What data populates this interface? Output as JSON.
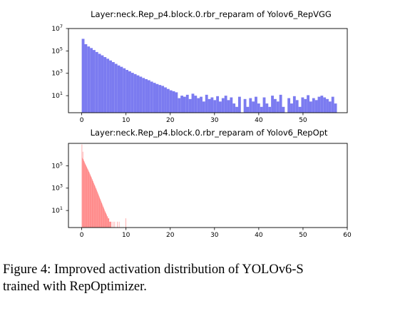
{
  "chart_data": [
    {
      "type": "bar",
      "title": "Layer:neck.Rep_p4.block.0.rbr_reparam of Yolov6_RepVGG",
      "xlabel": "",
      "ylabel": "",
      "y_scale": "log",
      "xlim": [
        -3,
        60
      ],
      "ylim": [
        0.3,
        10000000
      ],
      "x_ticks": [
        0,
        10,
        20,
        30,
        40,
        50
      ],
      "y_ticks": [
        {
          "value": 10,
          "base": "10",
          "exp": "1"
        },
        {
          "value": 1000,
          "base": "10",
          "exp": "3"
        },
        {
          "value": 100000,
          "base": "10",
          "exp": "5"
        },
        {
          "value": 10000000,
          "base": "10",
          "exp": "7"
        }
      ],
      "color": "#7b7bf0",
      "grid": false,
      "bin_width": 0.62,
      "x": [
        0.0,
        0.62,
        1.24,
        1.86,
        2.48,
        3.1,
        3.72,
        4.34,
        4.96,
        5.58,
        6.2,
        6.82,
        7.44,
        8.06,
        8.68,
        9.3,
        9.92,
        10.54,
        11.16,
        11.78,
        12.4,
        13.02,
        13.64,
        14.26,
        14.88,
        15.5,
        16.12,
        16.74,
        17.36,
        17.98,
        18.6,
        19.22,
        19.84,
        20.46,
        21.08,
        21.7,
        22.32,
        22.94,
        23.56,
        24.18,
        24.8,
        25.42,
        26.04,
        26.66,
        27.28,
        27.9,
        28.52,
        29.14,
        29.76,
        30.38,
        31.0,
        31.62,
        32.24,
        32.86,
        33.48,
        34.1,
        34.72,
        35.34,
        35.96,
        36.58,
        37.2,
        37.82,
        38.44,
        39.06,
        39.68,
        40.3,
        40.92,
        41.54,
        42.16,
        42.78,
        43.4,
        44.02,
        44.64,
        45.26,
        45.88,
        46.5,
        47.12,
        47.74,
        48.36,
        48.98,
        49.6,
        50.22,
        50.84,
        51.46,
        52.08,
        52.7,
        53.32,
        53.94,
        54.56,
        55.18,
        55.8,
        56.42,
        57.04
      ],
      "values": [
        1200000,
        400000,
        250000,
        180000,
        120000,
        80000,
        55000,
        40000,
        28000,
        20000,
        14000,
        10000,
        7000,
        5000,
        3800,
        2800,
        2000,
        1500,
        1100,
        850,
        650,
        500,
        380,
        300,
        240,
        180,
        140,
        110,
        90,
        75,
        55,
        40,
        30,
        25,
        20,
        6,
        10,
        8,
        12,
        5,
        15,
        10,
        6,
        8,
        3,
        12,
        5,
        7,
        4,
        9,
        3,
        6,
        10,
        4,
        7,
        2,
        1,
        8,
        0,
        5,
        1,
        6,
        3,
        8,
        2,
        1,
        7,
        2,
        1,
        10,
        5,
        3,
        12,
        1,
        0,
        6,
        2,
        9,
        4,
        1,
        7,
        5,
        11,
        3,
        6,
        4,
        8,
        10,
        7,
        5,
        3,
        8,
        2
      ]
    },
    {
      "type": "bar",
      "title": "Layer:neck.Rep_p4.block.0.rbr_reparam of Yolov6_RepOpt",
      "xlabel": "",
      "ylabel": "",
      "y_scale": "log",
      "xlim": [
        -3,
        60
      ],
      "ylim": [
        0.3,
        10000000
      ],
      "x_ticks": [
        0,
        10,
        20,
        30,
        40,
        50,
        60
      ],
      "y_ticks": [
        {
          "value": 10,
          "base": "10",
          "exp": "1"
        },
        {
          "value": 1000,
          "base": "10",
          "exp": "3"
        },
        {
          "value": 100000,
          "base": "10",
          "exp": "5"
        }
      ],
      "color": "#ff8080",
      "grid": false,
      "bin_width": 0.1,
      "x": [
        0.0,
        0.1,
        0.2,
        0.3,
        0.4,
        0.5,
        0.6,
        0.7,
        0.8,
        0.9,
        1.0,
        1.1,
        1.2,
        1.3,
        1.4,
        1.5,
        1.6,
        1.7,
        1.8,
        1.9,
        2.0,
        2.1,
        2.2,
        2.3,
        2.4,
        2.5,
        2.6,
        2.7,
        2.8,
        2.9,
        3.0,
        3.1,
        3.2,
        3.3,
        3.4,
        3.5,
        3.6,
        3.7,
        3.8,
        3.9,
        4.0,
        4.1,
        4.2,
        4.3,
        4.4,
        4.5,
        4.6,
        4.7,
        4.8,
        4.9,
        5.0,
        5.1,
        5.2,
        5.3,
        5.4,
        5.5,
        5.6,
        5.7,
        5.8,
        5.9,
        6.0,
        6.1,
        6.2,
        6.3,
        6.4,
        6.5,
        6.6,
        6.7,
        6.8,
        6.9,
        7.0,
        7.1,
        7.2,
        7.3,
        7.4,
        7.5,
        7.6,
        7.7,
        7.8,
        7.9,
        8.0,
        8.1,
        8.2,
        8.3,
        8.4,
        8.5,
        8.6,
        8.7,
        8.8,
        8.9,
        9.0,
        9.1,
        9.2,
        9.3,
        9.4,
        9.5,
        9.6,
        9.7,
        9.8,
        9.9
      ],
      "values": [
        8000000,
        500000,
        1800000,
        400000,
        300000,
        250000,
        200000,
        160000,
        130000,
        110000,
        90000,
        75000,
        60000,
        50000,
        42000,
        35000,
        28000,
        23000,
        19000,
        15000,
        12000,
        10000,
        8000,
        6500,
        5000,
        4200,
        3300,
        2700,
        2100,
        1700,
        1400,
        1100,
        900,
        700,
        560,
        450,
        360,
        280,
        220,
        180,
        140,
        110,
        90,
        70,
        55,
        45,
        35,
        28,
        22,
        18,
        14,
        11,
        9,
        7,
        6,
        5,
        4,
        3,
        3,
        2,
        2,
        2,
        1,
        1,
        1,
        1,
        1,
        0,
        0,
        0,
        1,
        0,
        0,
        0,
        1,
        0,
        0,
        0,
        0,
        0,
        1,
        0,
        0,
        0,
        1,
        0,
        0,
        0,
        0,
        0,
        0,
        0,
        0,
        0,
        0,
        0,
        0,
        0,
        0,
        2
      ]
    }
  ],
  "caption": {
    "line1": "Figure 4:  Improved activation distribution of YOLOv6-S",
    "line2": "trained with RepOptimizer."
  }
}
